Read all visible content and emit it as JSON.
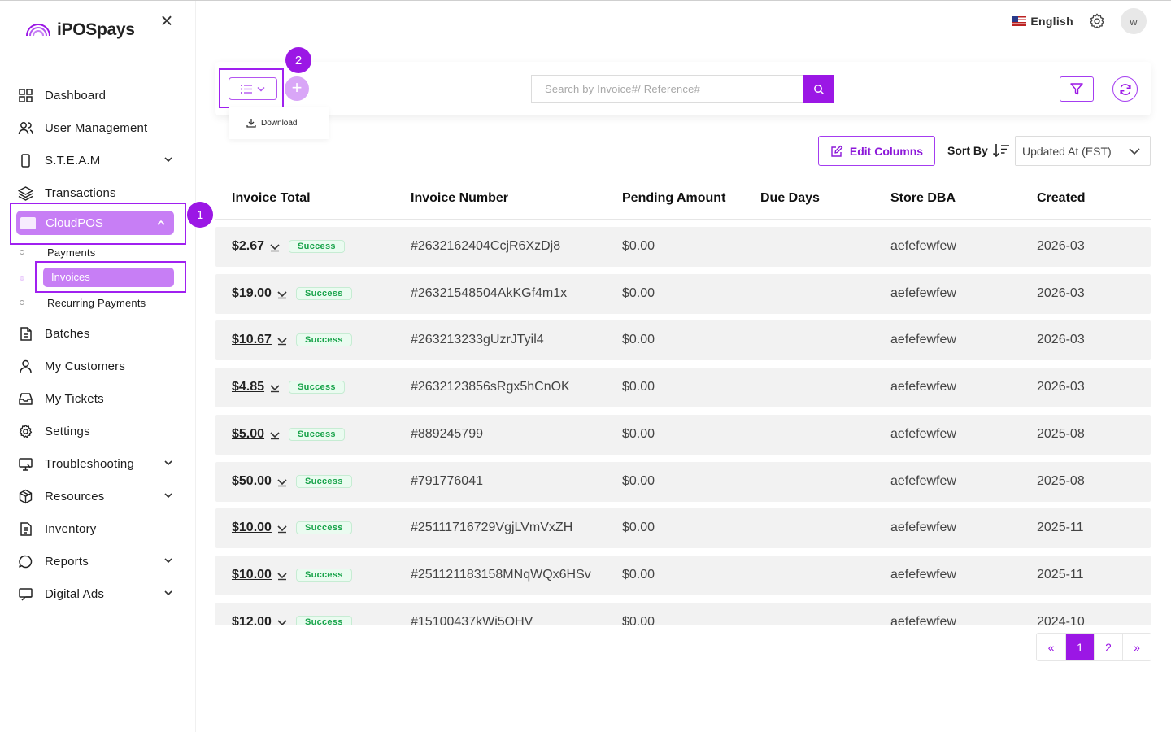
{
  "app": {
    "name": "iPOSpays"
  },
  "topbar": {
    "language": "English",
    "avatar_initial": "w"
  },
  "sidebar": {
    "items": [
      {
        "label": "Dashboard",
        "icon": "grid-icon"
      },
      {
        "label": "User Management",
        "icon": "users-icon"
      },
      {
        "label": "S.T.E.A.M",
        "icon": "device-icon"
      },
      {
        "label": "Transactions",
        "icon": "layers-icon"
      },
      {
        "label": "CloudPOS",
        "icon": "card-icon"
      },
      {
        "label": "Batches",
        "icon": "document-icon"
      },
      {
        "label": "My Customers",
        "icon": "user-icon"
      },
      {
        "label": "My Tickets",
        "icon": "inbox-icon"
      },
      {
        "label": "Settings",
        "icon": "gear-icon"
      },
      {
        "label": "Troubleshooting",
        "icon": "monitor-icon"
      },
      {
        "label": "Resources",
        "icon": "box-icon"
      },
      {
        "label": "Inventory",
        "icon": "file-icon"
      },
      {
        "label": "Reports",
        "icon": "chat-icon"
      },
      {
        "label": "Digital Ads",
        "icon": "screen-icon"
      }
    ],
    "cloudpos_sub": [
      "Payments",
      "Invoices",
      "Recurring Payments"
    ]
  },
  "annotations": {
    "badge1": "1",
    "badge2": "2"
  },
  "toolbar": {
    "download_label": "Download",
    "search_placeholder": "Search by Invoice#/ Reference#"
  },
  "sort": {
    "edit_columns": "Edit Columns",
    "sort_by": "Sort By",
    "selected": "Updated At (EST)"
  },
  "table": {
    "headers": [
      "Invoice Total",
      "Invoice Number",
      "Pending Amount",
      "Due Days",
      "Store DBA",
      "Created"
    ],
    "rows": [
      {
        "total": "$2.67",
        "status": "Success",
        "number": "#2632162404CcjR6XzDj8",
        "pending": "$0.00",
        "due": "",
        "store": "aefefewfew",
        "created": "2026-03"
      },
      {
        "total": "$19.00",
        "status": "Success",
        "number": "#26321548504AkKGf4m1x",
        "pending": "$0.00",
        "due": "",
        "store": "aefefewfew",
        "created": "2026-03"
      },
      {
        "total": "$10.67",
        "status": "Success",
        "number": "#263213233gUzrJTyil4",
        "pending": "$0.00",
        "due": "",
        "store": "aefefewfew",
        "created": "2026-03"
      },
      {
        "total": "$4.85",
        "status": "Success",
        "number": "#2632123856sRgx5hCnOK",
        "pending": "$0.00",
        "due": "",
        "store": "aefefewfew",
        "created": "2026-03"
      },
      {
        "total": "$5.00",
        "status": "Success",
        "number": "#889245799",
        "pending": "$0.00",
        "due": "",
        "store": "aefefewfew",
        "created": "2025-08"
      },
      {
        "total": "$50.00",
        "status": "Success",
        "number": "#791776041",
        "pending": "$0.00",
        "due": "",
        "store": "aefefewfew",
        "created": "2025-08"
      },
      {
        "total": "$10.00",
        "status": "Success",
        "number": "#25111716729VgjLVmVxZH",
        "pending": "$0.00",
        "due": "",
        "store": "aefefewfew",
        "created": "2025-11"
      },
      {
        "total": "$10.00",
        "status": "Success",
        "number": "#251121183158MNqWQx6HSv",
        "pending": "$0.00",
        "due": "",
        "store": "aefefewfew",
        "created": "2025-11"
      },
      {
        "total": "$12.00",
        "status": "Success",
        "number": "#15100437kWi5OHV",
        "pending": "$0.00",
        "due": "",
        "store": "aefefewfew",
        "created": "2024-10"
      }
    ]
  },
  "pagination": {
    "prev": "«",
    "pages": [
      "1",
      "2"
    ],
    "next": "»",
    "active": "1"
  },
  "colors": {
    "accent": "#9b17e5",
    "highlight": "#c77ef5",
    "success": "#18a34a"
  }
}
